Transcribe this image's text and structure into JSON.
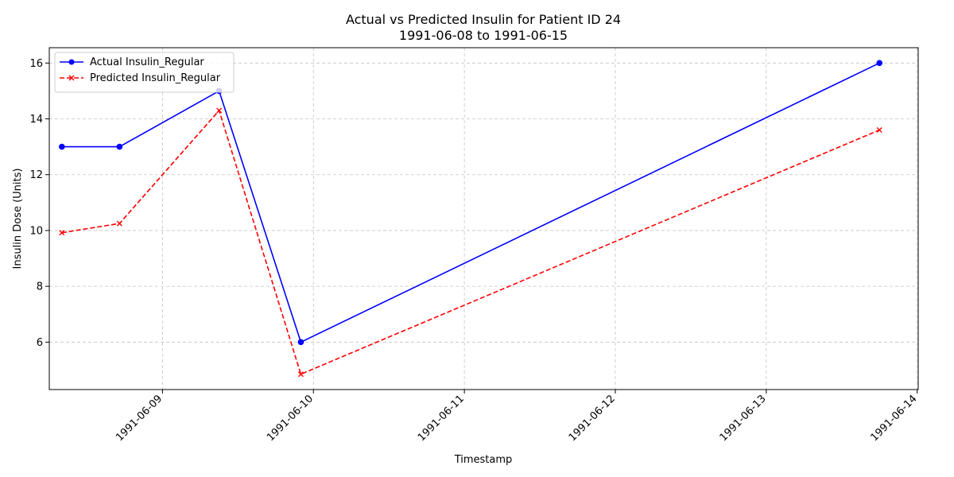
{
  "chart_data": {
    "type": "line",
    "title": "Actual vs Predicted Insulin for Patient ID 24",
    "subtitle": "1991-06-08 to 1991-06-15",
    "xlabel": "Timestamp",
    "ylabel": "Insulin Dose (Units)",
    "x_ticks": [
      "1991-06-09",
      "1991-06-10",
      "1991-06-11",
      "1991-06-12",
      "1991-06-13",
      "1991-06-14"
    ],
    "y_ticks": [
      6,
      8,
      10,
      12,
      14,
      16
    ],
    "xlim": [
      "1991-06-08T06:00",
      "1991-06-14T00:10"
    ],
    "ylim": [
      4.3,
      16.55
    ],
    "grid": true,
    "legend_position": "top-left",
    "x": [
      "1991-06-08T08:00",
      "1991-06-08T17:10",
      "1991-06-09T09:00",
      "1991-06-09T22:00",
      "1991-06-13T18:00"
    ],
    "series": [
      {
        "name": "Actual Insulin_Regular",
        "values": [
          13,
          13,
          15,
          6,
          16
        ],
        "color": "#0000ff",
        "style": "solid",
        "marker": "circle"
      },
      {
        "name": "Predicted Insulin_Regular",
        "values": [
          9.92,
          10.25,
          14.3,
          4.85,
          13.6
        ],
        "color": "#ff0000",
        "style": "dashed",
        "marker": "x"
      }
    ]
  }
}
